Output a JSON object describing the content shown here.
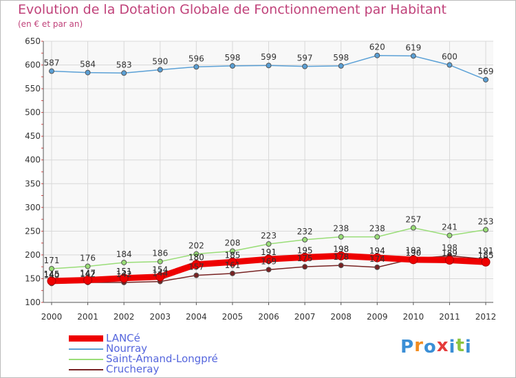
{
  "title": "Evolution de la Dotation Globale de Fonctionnement par Habitant",
  "subtitle": "(en € et par an)",
  "logo_text": "Proxiti",
  "chart_data": {
    "type": "line",
    "title": "Evolution de la Dotation Globale de Fonctionnement par Habitant",
    "subtitle": "(en € et par an)",
    "categories": [
      "2000",
      "2001",
      "2002",
      "2003",
      "2004",
      "2005",
      "2006",
      "2007",
      "2008",
      "2009",
      "2010",
      "2011",
      "2012"
    ],
    "ylim": [
      100,
      650
    ],
    "yticks": [
      100,
      150,
      200,
      250,
      300,
      350,
      400,
      450,
      500,
      550,
      600,
      650
    ],
    "grid": true,
    "legend_position": "bottom-left",
    "series": [
      {
        "name": "LANCé",
        "color": "#ee0000",
        "values": [
          145,
          147,
          151,
          154,
          180,
          185,
          191,
          195,
          198,
          194,
          190,
          189,
          185
        ]
      },
      {
        "name": "Nourray",
        "color": "#5aa0d6",
        "values": [
          587,
          584,
          583,
          590,
          596,
          598,
          599,
          597,
          598,
          620,
          619,
          600,
          569
        ]
      },
      {
        "name": "Saint-Amand-Longpré",
        "color": "#99dd77",
        "values": [
          171,
          176,
          184,
          186,
          202,
          208,
          223,
          232,
          238,
          238,
          257,
          241,
          253
        ]
      },
      {
        "name": "Crucheray",
        "color": "#772222",
        "values": [
          140,
          142,
          142,
          144,
          157,
          161,
          169,
          175,
          178,
          174,
          192,
          198,
          191
        ]
      }
    ]
  }
}
